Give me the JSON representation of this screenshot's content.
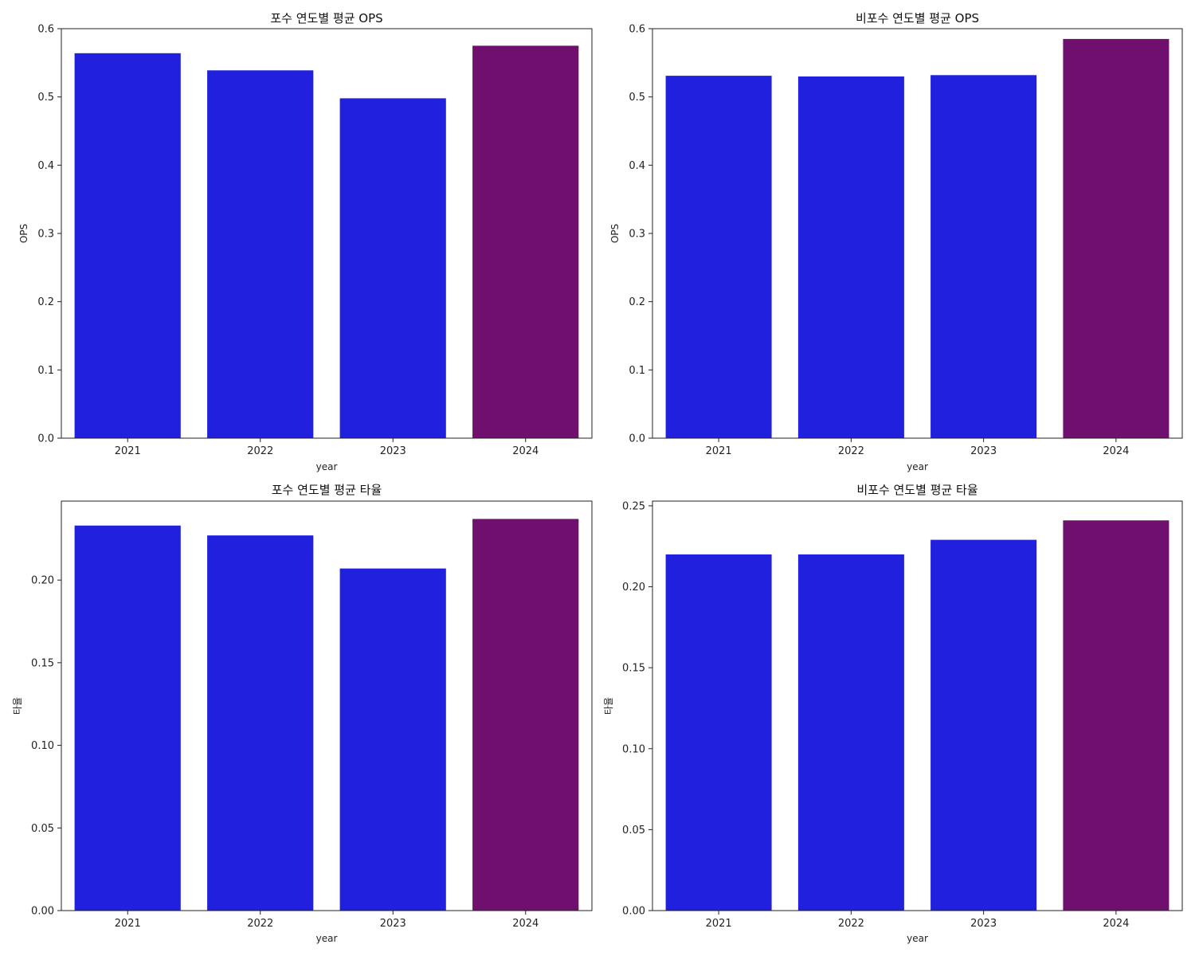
{
  "chart_data": [
    {
      "type": "bar",
      "title": "포수 연도별 평균 OPS",
      "xlabel": "year",
      "ylabel": "OPS",
      "categories": [
        "2021",
        "2022",
        "2023",
        "2024"
      ],
      "values": [
        0.564,
        0.539,
        0.498,
        0.575
      ],
      "ylim": [
        0,
        0.6
      ],
      "yticks": [
        0.0,
        0.1,
        0.2,
        0.3,
        0.4,
        0.5,
        0.6
      ],
      "ytick_labels": [
        "0.0",
        "0.1",
        "0.2",
        "0.3",
        "0.4",
        "0.5",
        "0.6"
      ],
      "bar_colors": [
        "#2020dd",
        "#2020dd",
        "#2020dd",
        "#70106e"
      ],
      "grid": false,
      "legend": "none"
    },
    {
      "type": "bar",
      "title": "비포수 연도별 평균 OPS",
      "xlabel": "year",
      "ylabel": "OPS",
      "categories": [
        "2021",
        "2022",
        "2023",
        "2024"
      ],
      "values": [
        0.531,
        0.53,
        0.532,
        0.585
      ],
      "ylim": [
        0,
        0.6
      ],
      "yticks": [
        0.0,
        0.1,
        0.2,
        0.3,
        0.4,
        0.5,
        0.6
      ],
      "ytick_labels": [
        "0.0",
        "0.1",
        "0.2",
        "0.3",
        "0.4",
        "0.5",
        "0.6"
      ],
      "bar_colors": [
        "#2020dd",
        "#2020dd",
        "#2020dd",
        "#70106e"
      ],
      "grid": false,
      "legend": "none"
    },
    {
      "type": "bar",
      "title": "포수 연도별 평균 타율",
      "xlabel": "year",
      "ylabel": "타율",
      "categories": [
        "2021",
        "2022",
        "2023",
        "2024"
      ],
      "values": [
        0.233,
        0.227,
        0.207,
        0.237
      ],
      "ylim": [
        0,
        0.25
      ],
      "yticks": [
        0.0,
        0.05,
        0.1,
        0.15,
        0.2
      ],
      "ytick_labels": [
        "0.00",
        "0.05",
        "0.10",
        "0.15",
        "0.20"
      ],
      "bar_colors": [
        "#2020dd",
        "#2020dd",
        "#2020dd",
        "#70106e"
      ],
      "grid": false,
      "legend": "none"
    },
    {
      "type": "bar",
      "title": "비포수 연도별 평균 타율",
      "xlabel": "year",
      "ylabel": "타율",
      "categories": [
        "2021",
        "2022",
        "2023",
        "2024"
      ],
      "values": [
        0.22,
        0.22,
        0.229,
        0.241
      ],
      "ylim": [
        0,
        0.25
      ],
      "yticks": [
        0.0,
        0.05,
        0.1,
        0.15,
        0.2,
        0.25
      ],
      "ytick_labels": [
        "0.00",
        "0.05",
        "0.10",
        "0.15",
        "0.20",
        "0.25"
      ],
      "bar_colors": [
        "#2020dd",
        "#2020dd",
        "#2020dd",
        "#70106e"
      ],
      "grid": false,
      "legend": "none"
    }
  ]
}
